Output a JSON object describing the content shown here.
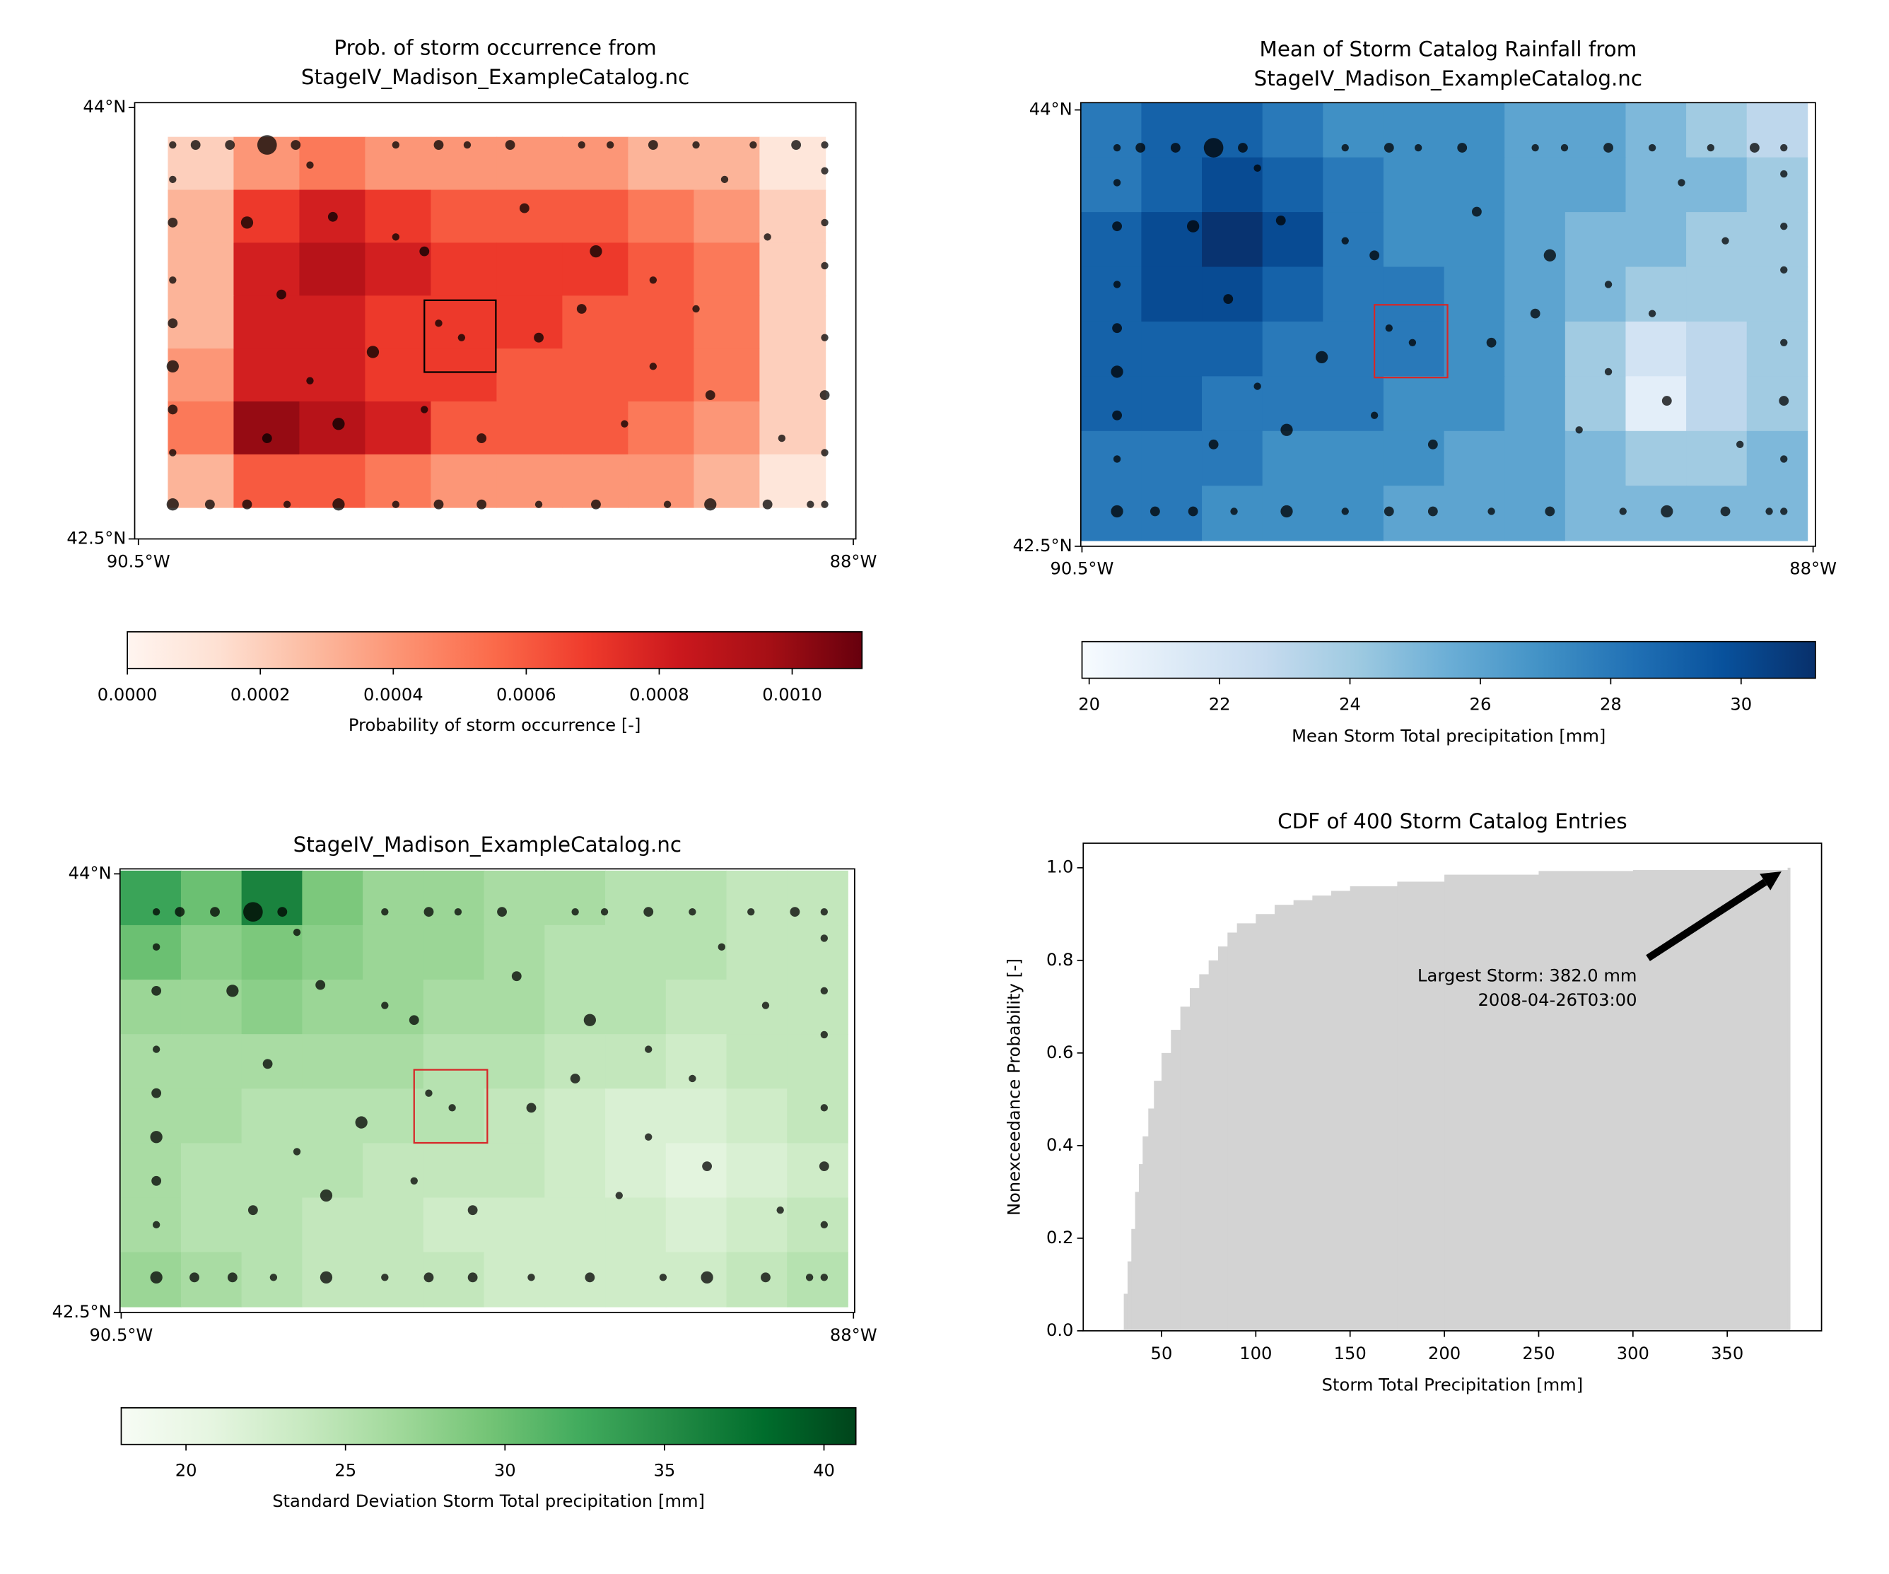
{
  "storms": {
    "lon": [
      -90.38,
      -90.3,
      -90.18,
      -90.05,
      -89.95,
      -89.6,
      -89.45,
      -89.35,
      -89.2,
      -88.95,
      -88.85,
      -88.7,
      -88.55,
      -88.35,
      -88.2,
      -88.1,
      -90.38,
      -90.25,
      -90.12,
      -89.98,
      -89.8,
      -89.6,
      -89.45,
      -89.3,
      -89.1,
      -88.9,
      -88.65,
      -88.5,
      -88.3,
      -88.15,
      -88.1,
      -90.38,
      -90.38,
      -90.38,
      -90.38,
      -90.38,
      -90.38,
      -90.38,
      -88.1,
      -88.1,
      -88.1,
      -88.1,
      -88.1,
      -88.1,
      -90.12,
      -90.0,
      -89.82,
      -89.6,
      -89.5,
      -89.45,
      -89.68,
      -89.9,
      -90.05,
      -89.8,
      -89.5,
      -89.3,
      -89.1,
      -88.95,
      -88.9,
      -88.7,
      -88.55,
      -88.3,
      -88.5,
      -88.8,
      -89.15,
      -88.45,
      -89.9,
      -89.37,
      -88.7,
      -88.25
    ],
    "lat": [
      43.87,
      43.87,
      43.87,
      43.87,
      43.87,
      43.87,
      43.87,
      43.87,
      43.87,
      43.87,
      43.87,
      43.87,
      43.87,
      43.87,
      43.87,
      43.87,
      42.62,
      42.62,
      42.62,
      42.62,
      42.62,
      42.62,
      42.62,
      42.62,
      42.62,
      42.62,
      42.62,
      42.62,
      42.62,
      42.62,
      42.62,
      43.75,
      43.6,
      43.4,
      43.25,
      43.1,
      42.95,
      42.8,
      43.78,
      43.6,
      43.45,
      43.2,
      43.0,
      42.8,
      43.6,
      43.35,
      43.62,
      43.55,
      43.5,
      43.25,
      43.15,
      43.05,
      42.85,
      42.9,
      42.95,
      42.85,
      43.2,
      43.3,
      43.5,
      43.4,
      43.3,
      43.55,
      43.0,
      42.9,
      43.65,
      43.75,
      43.8,
      43.2,
      43.1,
      42.85
    ],
    "size": [
      3,
      4,
      4,
      8,
      4,
      3,
      4,
      3,
      4,
      3,
      3,
      4,
      3,
      3,
      4,
      3,
      5,
      4,
      4,
      3,
      5,
      3,
      4,
      4,
      3,
      4,
      3,
      5,
      4,
      3,
      3,
      3,
      4,
      3,
      4,
      5,
      4,
      3,
      3,
      3,
      3,
      3,
      4,
      3,
      5,
      4,
      4,
      3,
      4,
      3,
      5,
      3,
      4,
      5,
      3,
      4,
      4,
      4,
      5,
      3,
      3,
      3,
      4,
      3,
      4,
      3,
      3,
      3,
      3,
      3
    ]
  },
  "chart_data": [
    {
      "type": "map",
      "title": [
        "Prob. of storm occurrence from",
        "StageIV_Madison_ExampleCatalog.nc"
      ],
      "xlim": [
        -90.513,
        -87.991
      ],
      "ylim": [
        42.5,
        44.017
      ],
      "xticks": [
        {
          "value": -90.5,
          "label": "90.5°W"
        },
        {
          "value": -88,
          "label": "88°W"
        }
      ],
      "yticks": [
        {
          "value": 42.5,
          "label": "42.5°N"
        },
        {
          "value": 44,
          "label": "44°N"
        }
      ],
      "grid_lon": [
        -90.397,
        -88.098
      ],
      "grid_lat": [
        43.898,
        42.61
      ],
      "grid": [
        [
          0.0002,
          0.0004,
          0.0005,
          0.0004,
          0.0004,
          0.0004,
          0.0004,
          0.0003,
          0.0003,
          0.0001
        ],
        [
          0.0003,
          0.0007,
          0.0008,
          0.0007,
          0.0006,
          0.0006,
          0.0006,
          0.0005,
          0.0004,
          0.0002
        ],
        [
          0.0003,
          0.0008,
          0.0009,
          0.0008,
          0.0007,
          0.0007,
          0.0007,
          0.0006,
          0.0005,
          0.0002
        ],
        [
          0.0003,
          0.0008,
          0.0008,
          0.0007,
          0.0007,
          0.0007,
          0.0006,
          0.0006,
          0.0005,
          0.0002
        ],
        [
          0.0004,
          0.0008,
          0.0008,
          0.0007,
          0.0007,
          0.0006,
          0.0006,
          0.0006,
          0.0005,
          0.0002
        ],
        [
          0.0005,
          0.001,
          0.0009,
          0.0008,
          0.0006,
          0.0006,
          0.0006,
          0.0005,
          0.0004,
          0.0002
        ],
        [
          0.0003,
          0.0006,
          0.0006,
          0.0005,
          0.0004,
          0.0004,
          0.0004,
          0.0004,
          0.0003,
          0.0001
        ]
      ],
      "colormap": [
        "#fff5f0",
        "#fee0d2",
        "#fcbba1",
        "#fc9272",
        "#fb6a4a",
        "#ef3b2c",
        "#cb181d",
        "#a50f15",
        "#67000d"
      ],
      "clim": [
        0,
        0.001105
      ],
      "cticks": [
        {
          "value": 0,
          "label": "0.0000"
        },
        {
          "value": 0.0002,
          "label": "0.0002"
        },
        {
          "value": 0.0004,
          "label": "0.0004"
        },
        {
          "value": 0.0006,
          "label": "0.0006"
        },
        {
          "value": 0.0008,
          "label": "0.0008"
        },
        {
          "value": 0.001,
          "label": "0.0010"
        }
      ],
      "colorbar_label": "Probability of storm occurrence [-]",
      "box": {
        "lon": [
          -89.5,
          -89.25
        ],
        "lat": [
          43.33,
          43.08
        ],
        "color": "#000000"
      }
    },
    {
      "type": "map",
      "title": [
        "Mean of Storm Catalog Rainfall from",
        "StageIV_Madison_ExampleCatalog.nc"
      ],
      "xlim": [
        -90.504,
        -87.992
      ],
      "ylim": [
        42.5,
        44.025
      ],
      "xticks": [
        {
          "value": -90.5,
          "label": "90.5°W"
        },
        {
          "value": -88,
          "label": "88°W"
        }
      ],
      "yticks": [
        {
          "value": 42.5,
          "label": "42.5°N"
        },
        {
          "value": 44,
          "label": "44°N"
        }
      ],
      "grid_lon": [
        -90.504,
        -88.02
      ],
      "grid_lat": [
        44.025,
        42.52
      ],
      "grid": [
        [
          28,
          29,
          29,
          28,
          27,
          27,
          27,
          26,
          26,
          25,
          24,
          23
        ],
        [
          28,
          29,
          30,
          29,
          28,
          27,
          27,
          26,
          26,
          25,
          25,
          24
        ],
        [
          29,
          30,
          31,
          30,
          28,
          27,
          27,
          26,
          25,
          25,
          24,
          24
        ],
        [
          29,
          30,
          30,
          29,
          28,
          28,
          27,
          26,
          25,
          24,
          24,
          24
        ],
        [
          29,
          29,
          29,
          28,
          28,
          28,
          27,
          26,
          24,
          22,
          23,
          24
        ],
        [
          29,
          29,
          28,
          28,
          28,
          27,
          27,
          26,
          24,
          21,
          23,
          24
        ],
        [
          28,
          28,
          28,
          27,
          27,
          27,
          26,
          26,
          25,
          24,
          24,
          25
        ],
        [
          28,
          28,
          27,
          27,
          27,
          26,
          26,
          26,
          25,
          25,
          25,
          25
        ]
      ],
      "colormap": [
        "#f7fbff",
        "#deebf7",
        "#c6dbef",
        "#9ecae1",
        "#6baed6",
        "#4292c6",
        "#2171b5",
        "#08519c",
        "#08306b"
      ],
      "clim": [
        19.89,
        31.14
      ],
      "cticks": [
        20,
        22,
        24,
        26,
        28,
        30
      ],
      "colorbar_label": "Mean Storm Total precipitation [mm]",
      "box": {
        "lon": [
          -89.5,
          -89.25
        ],
        "lat": [
          43.33,
          43.08
        ],
        "color": "#d62728"
      }
    },
    {
      "type": "map",
      "title": [
        "StageIV_Madison_ExampleCatalog.nc"
      ],
      "xlim": [
        -90.504,
        -87.996
      ],
      "ylim": [
        42.5,
        44.017
      ],
      "xticks": [
        {
          "value": -90.5,
          "label": "90.5°W"
        },
        {
          "value": -88,
          "label": "88°W"
        }
      ],
      "yticks": [
        {
          "value": 42.5,
          "label": "42.5°N"
        },
        {
          "value": 44,
          "label": "44°N"
        }
      ],
      "grid_lon": [
        -90.503,
        -88.02
      ],
      "grid_lat": [
        44.011,
        42.52
      ],
      "grid": [
        [
          33,
          30,
          36,
          29,
          27,
          27,
          26,
          26,
          25,
          25,
          24,
          24
        ],
        [
          30,
          28,
          29,
          28,
          27,
          27,
          26,
          25,
          25,
          25,
          24,
          24
        ],
        [
          27,
          27,
          28,
          27,
          27,
          26,
          26,
          25,
          25,
          24,
          24,
          24
        ],
        [
          26,
          26,
          26,
          26,
          26,
          25,
          25,
          24,
          24,
          23,
          24,
          24
        ],
        [
          26,
          26,
          25,
          25,
          25,
          25,
          24,
          23,
          22,
          22,
          23,
          24
        ],
        [
          26,
          25,
          25,
          25,
          24,
          24,
          24,
          23,
          22,
          21,
          22,
          23
        ],
        [
          26,
          25,
          25,
          24,
          24,
          23,
          23,
          23,
          23,
          22,
          23,
          24
        ],
        [
          27,
          26,
          25,
          24,
          24,
          24,
          23,
          23,
          23,
          23,
          24,
          25
        ]
      ],
      "colormap": [
        "#f7fcf5",
        "#e5f5e0",
        "#c7e9c0",
        "#a1d99b",
        "#74c476",
        "#41ab5d",
        "#238b45",
        "#006d2c",
        "#00441b"
      ],
      "clim": [
        17.97,
        41.0
      ],
      "cticks": [
        20,
        25,
        30,
        35,
        40
      ],
      "colorbar_label": "Standard Deviation Storm Total precipitation [mm]",
      "box": {
        "lon": [
          -89.5,
          -89.25
        ],
        "lat": [
          43.33,
          43.08
        ],
        "color": "#d62728"
      }
    },
    {
      "type": "cdf",
      "title": "CDF of 400 Storm Catalog Entries",
      "x_label": "Storm Total Precipitation [mm]",
      "y_label": "Nonexceedance Probability [-]",
      "xlim": [
        8.5,
        400
      ],
      "ylim": [
        0,
        1.053
      ],
      "xticks": [
        50,
        100,
        150,
        200,
        250,
        300,
        350
      ],
      "yticks": [
        {
          "value": 0,
          "label": "0.0"
        },
        {
          "value": 0.2,
          "label": "0.2"
        },
        {
          "value": 0.4,
          "label": "0.4"
        },
        {
          "value": 0.6,
          "label": "0.6"
        },
        {
          "value": 0.8,
          "label": "0.8"
        },
        {
          "value": 1.0,
          "label": "1.0"
        }
      ],
      "x": [
        28,
        30,
        32,
        34,
        36,
        38,
        40,
        43,
        46,
        50,
        55,
        60,
        65,
        70,
        75,
        80,
        85,
        90,
        100,
        110,
        120,
        130,
        140,
        150,
        175,
        200,
        250,
        300,
        382
      ],
      "values": [
        0.0025,
        0.08,
        0.15,
        0.22,
        0.3,
        0.36,
        0.42,
        0.48,
        0.54,
        0.6,
        0.65,
        0.7,
        0.74,
        0.77,
        0.8,
        0.83,
        0.86,
        0.88,
        0.9,
        0.92,
        0.93,
        0.94,
        0.95,
        0.96,
        0.97,
        0.985,
        0.993,
        0.995,
        1.0
      ],
      "color": "#d3d3d3",
      "annotation": [
        "Largest Storm: 382.0 mm",
        "2008-04-26T03:00"
      ]
    }
  ]
}
